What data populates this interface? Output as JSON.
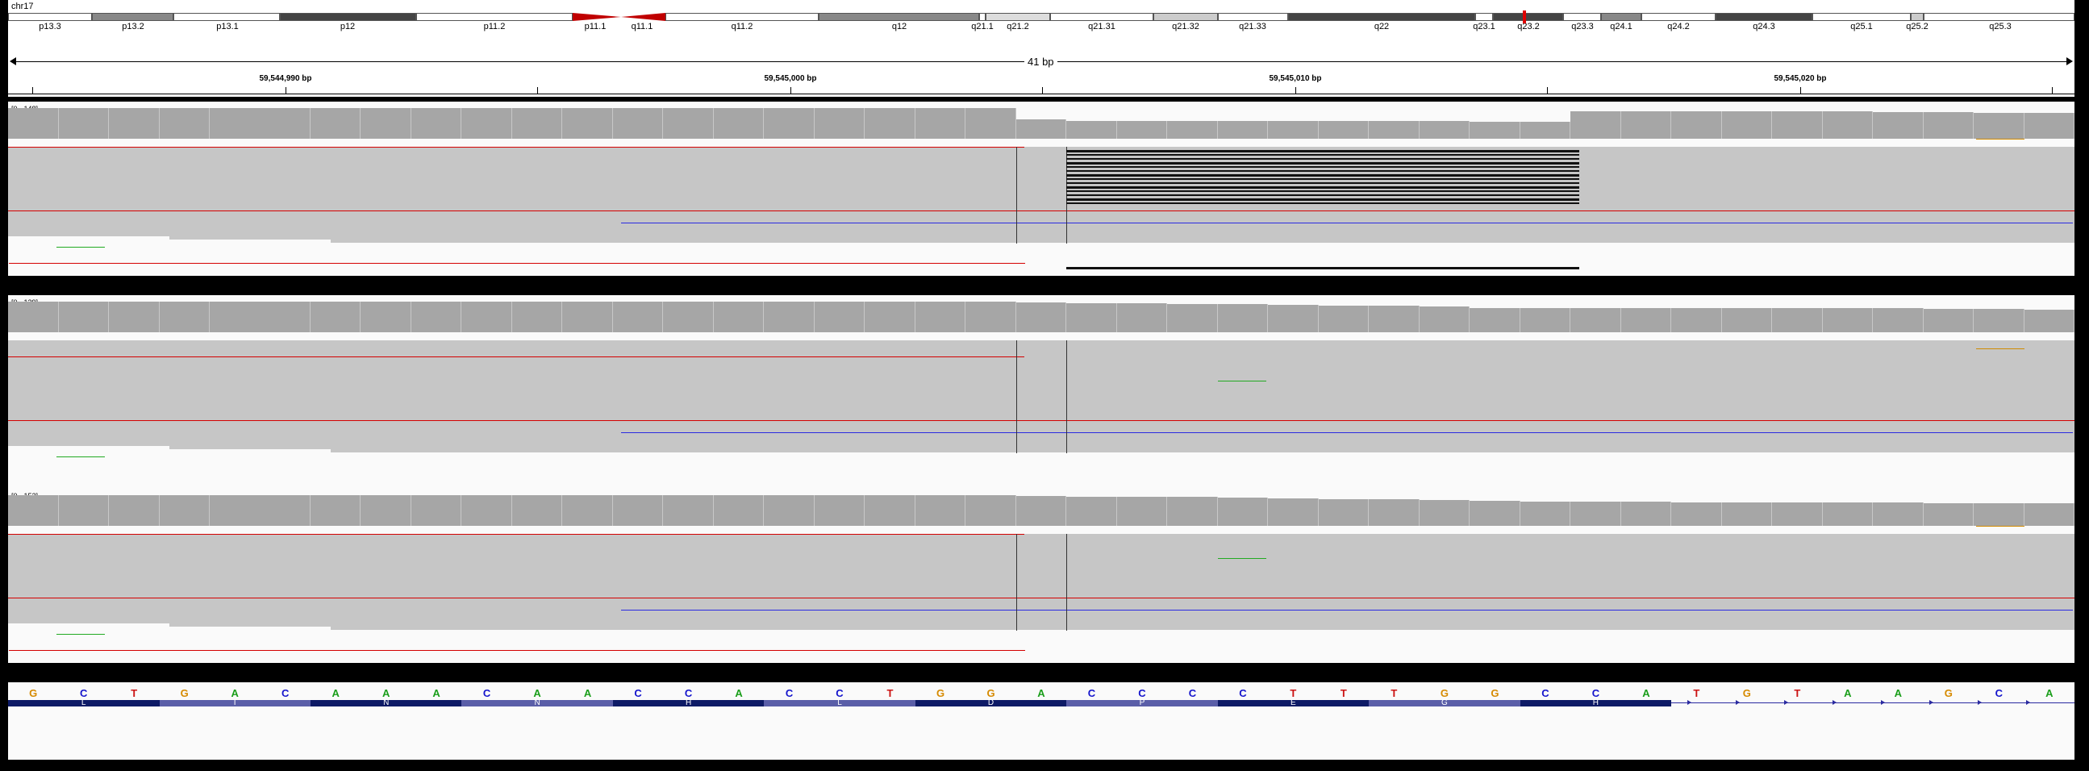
{
  "chromosome": {
    "name": "chr17",
    "bands": [
      "p13.3",
      "p13.2",
      "p13.1",
      "p12",
      "p11.2",
      "p11.1",
      "q11.1",
      "q11.2",
      "q12",
      "q21.1",
      "q21.2",
      "q21.31",
      "q21.32",
      "q21.33",
      "q22",
      "q23.1",
      "q23.2",
      "q23.3",
      "q24.1",
      "q24.2",
      "q24.3",
      "q25.1",
      "q25.2",
      "q25.3"
    ]
  },
  "ruler": {
    "span_label": "41 bp",
    "ticks": [
      "59,544,990 bp",
      "59,545,000 bp",
      "59,545,010 bp",
      "59,545,020 bp"
    ]
  },
  "tracks": [
    {
      "range": "[0 - 148]"
    },
    {
      "range": "[0 - 129]"
    },
    {
      "range": "[0 - 152]"
    }
  ],
  "reference_sequence": [
    "G",
    "C",
    "T",
    "G",
    "A",
    "C",
    "A",
    "A",
    "A",
    "C",
    "A",
    "A",
    "C",
    "C",
    "A",
    "C",
    "C",
    "T",
    "G",
    "G",
    "A",
    "C",
    "C",
    "C",
    "C",
    "T",
    "T",
    "T",
    "G",
    "G",
    "C",
    "C",
    "A",
    "T",
    "G",
    "T",
    "A",
    "A",
    "G",
    "C",
    "A"
  ],
  "base_colors": {
    "A": "#1a9e1a",
    "C": "#1414cc",
    "G": "#d68a00",
    "T": "#cc1414"
  },
  "gene": {
    "amino_acids": [
      "L",
      "I",
      "N",
      "N",
      "H",
      "L",
      "D",
      "P",
      "E",
      "G",
      "H"
    ],
    "colors": {
      "dark": "#0d1a66",
      "light": "#5a5ea8",
      "intron": "#2a2aa0"
    }
  },
  "colors": {
    "coverage": "#a6a6a6",
    "read": "#c6c6c6",
    "mismatch_red": "#d40000",
    "mismatch_blue": "#2a2ae0",
    "mismatch_green": "#22aa22",
    "mismatch_orange": "#d08a00",
    "centromere": "#c00000"
  }
}
